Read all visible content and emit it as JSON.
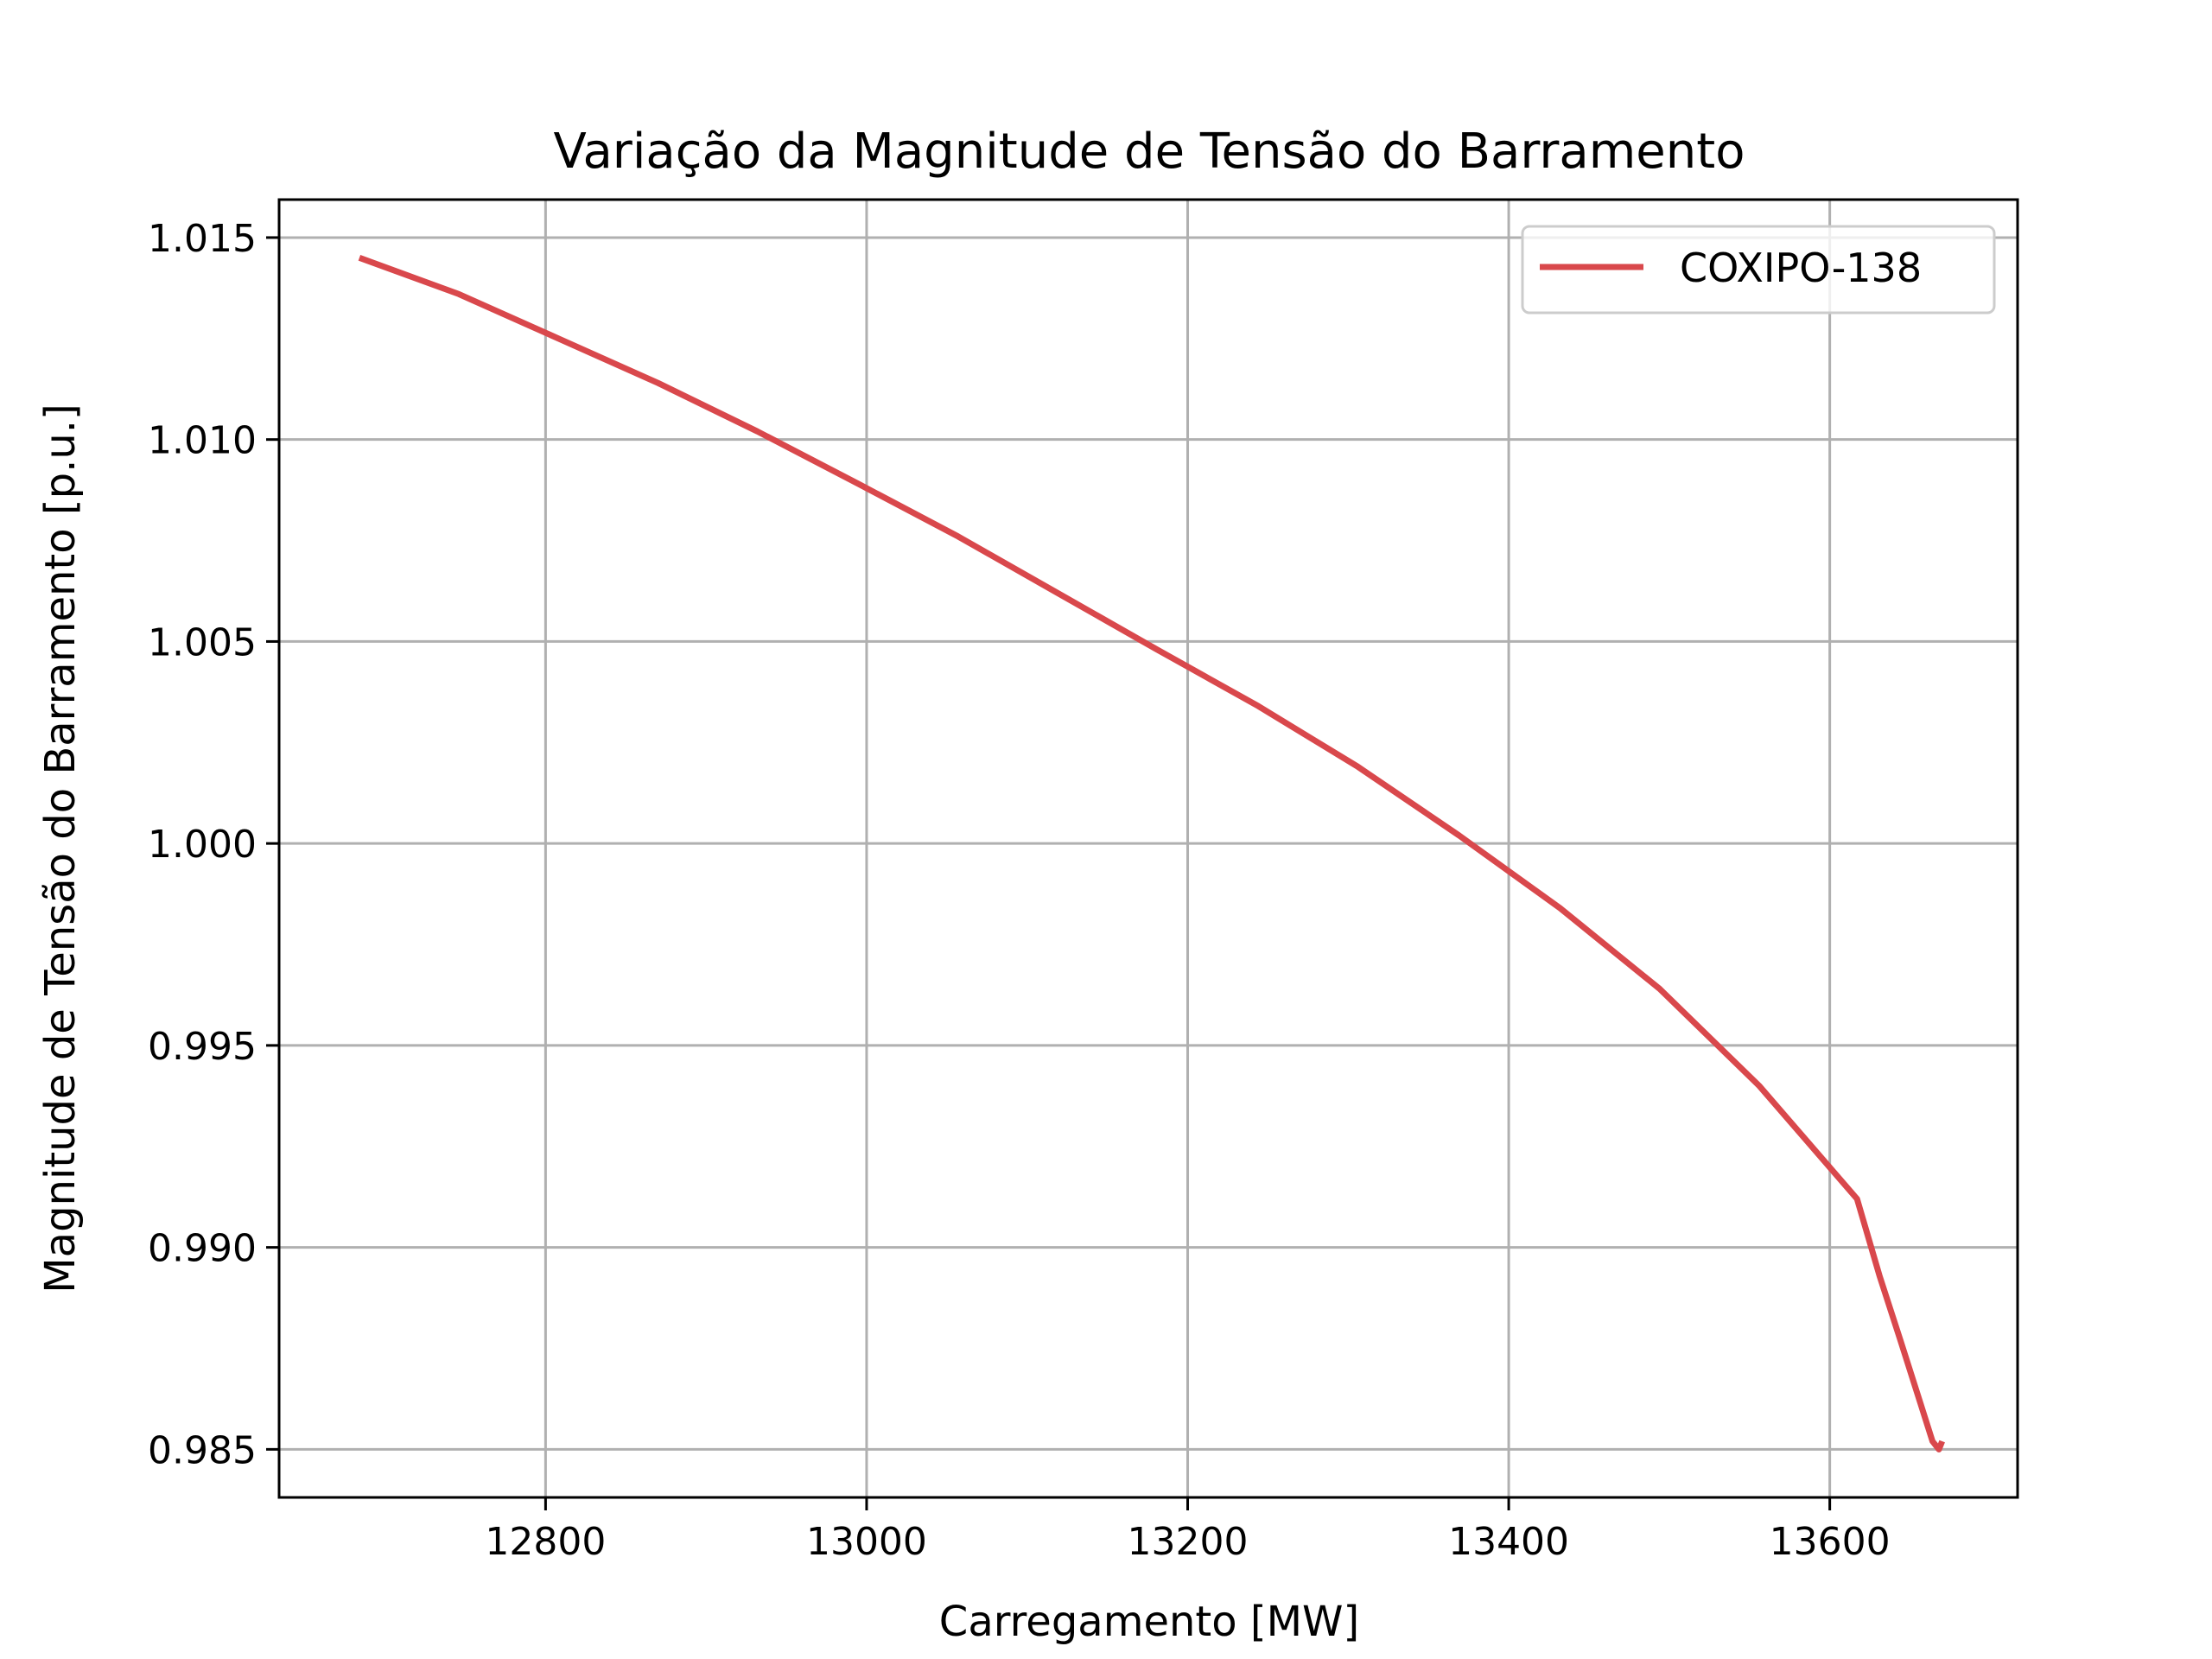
{
  "chart_data": {
    "type": "line",
    "title": "Variação da Magnitude de Tensão do Barramento",
    "xlabel": "Carregamento [MW]",
    "ylabel": "Magnitude de Tensão do Barramento [p.u.]",
    "xlim": [
      12634,
      13717
    ],
    "ylim": [
      0.98381,
      1.01594
    ],
    "xticks": [
      12800,
      13000,
      13200,
      13400,
      13600
    ],
    "xtick_labels": [
      "12800",
      "13000",
      "13200",
      "13400",
      "13600"
    ],
    "yticks": [
      0.985,
      0.99,
      0.995,
      1.0,
      1.005,
      1.01,
      1.015
    ],
    "ytick_labels": [
      "0.985",
      "0.990",
      "0.995",
      "1.000",
      "1.005",
      "1.010",
      "1.015"
    ],
    "grid": true,
    "legend_position": "top-right",
    "series": [
      {
        "name": "COXIPO-138",
        "color": "#d9484c",
        "x": [
          12684,
          12746,
          12808,
          12870,
          12932,
          12995,
          13057,
          13119,
          13181,
          13244,
          13306,
          13369,
          13432,
          13494,
          13556,
          13617,
          13631,
          13644,
          13656,
          13664,
          13668,
          13670
        ],
        "y": [
          1.0145,
          1.0136,
          1.0125,
          1.0114,
          1.0102,
          1.0089,
          1.0076,
          1.0062,
          1.0048,
          1.0034,
          1.0019,
          1.0002,
          0.9984,
          0.9964,
          0.994,
          0.9912,
          0.9893,
          0.9877,
          0.9862,
          0.9852,
          0.985,
          0.9852
        ]
      }
    ]
  }
}
